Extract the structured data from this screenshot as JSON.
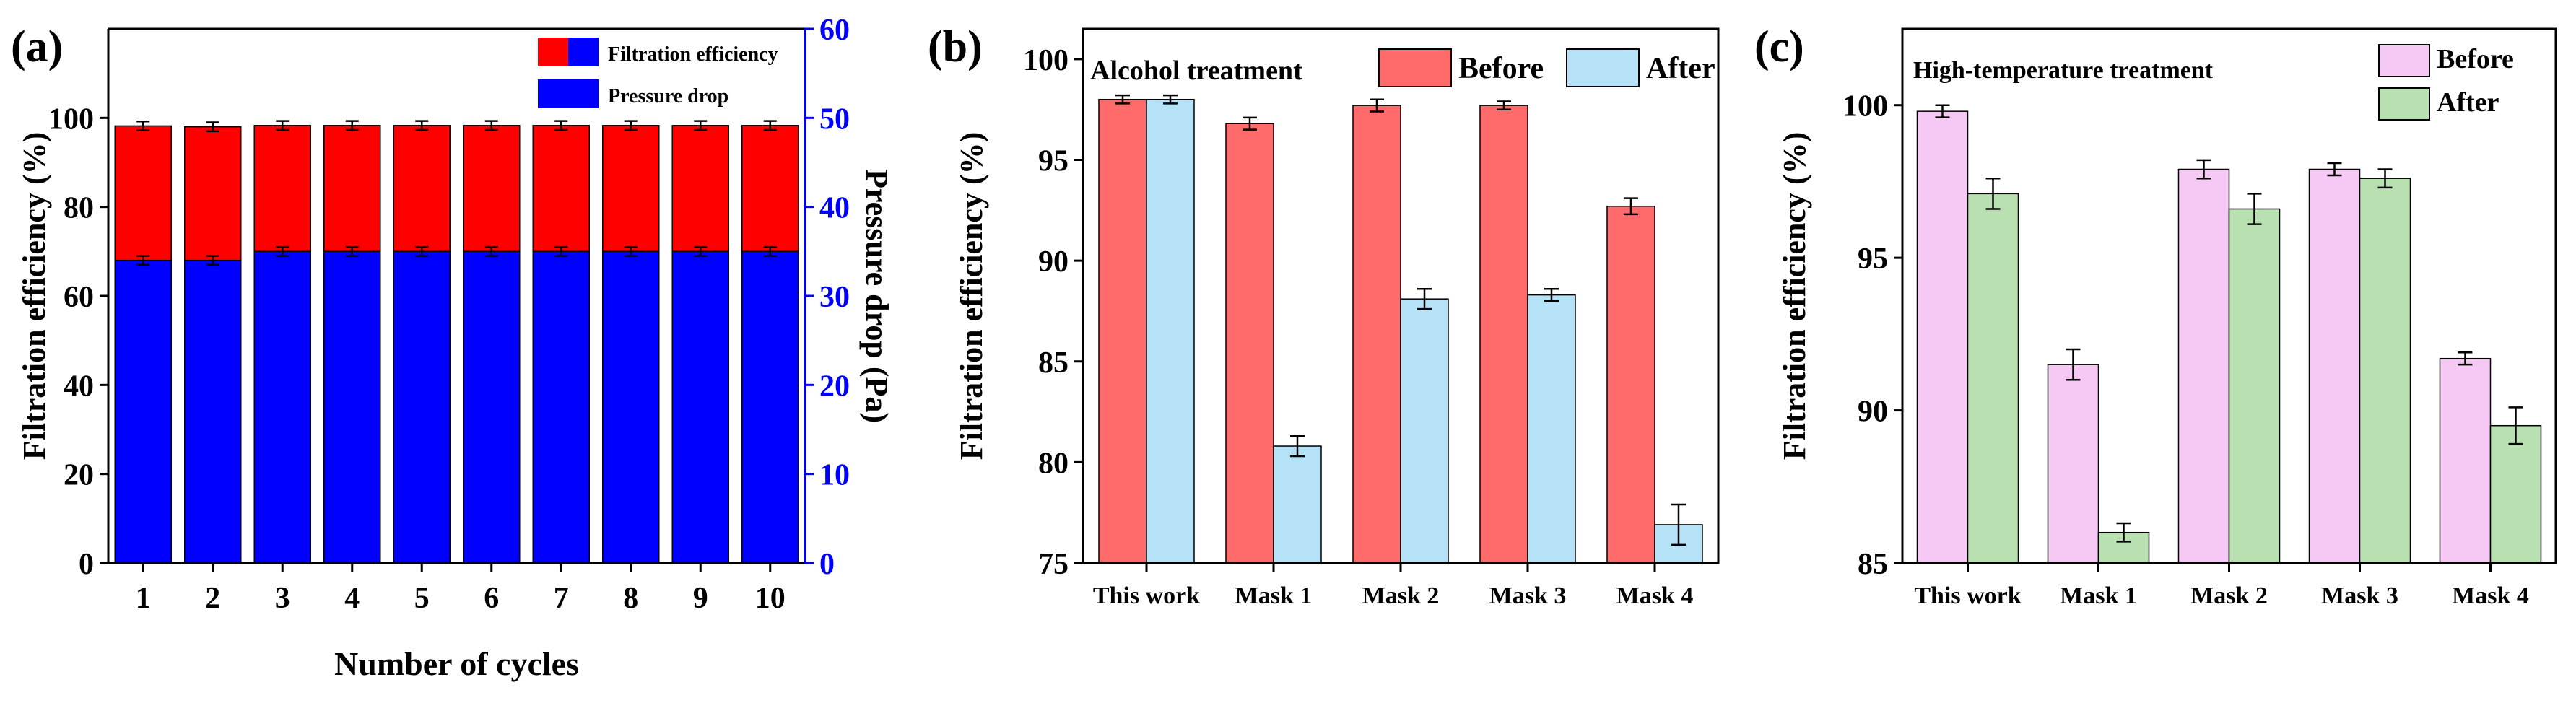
{
  "chart_data": [
    {
      "panel_label": "(a)",
      "type": "bar",
      "stacked": true,
      "xlabel": "Number of cycles",
      "ylabel": "Filtration efficiency (%)",
      "y2label": "Pressure drop (Pa)",
      "categories": [
        "1",
        "2",
        "3",
        "4",
        "5",
        "6",
        "7",
        "8",
        "9",
        "10"
      ],
      "ylim": [
        0,
        120
      ],
      "y_ticks": [
        0,
        20,
        40,
        60,
        80,
        100
      ],
      "y2lim": [
        0,
        60
      ],
      "y2_ticks": [
        0,
        10,
        20,
        30,
        40,
        50,
        60
      ],
      "series": [
        {
          "name": "Filtration efficiency",
          "axis": "left",
          "color": "#ff0000",
          "values": [
            98.2,
            98.0,
            98.3,
            98.3,
            98.3,
            98.3,
            98.3,
            98.3,
            98.3,
            98.3
          ],
          "errors": [
            1.0,
            1.0,
            1.0,
            1.0,
            1.0,
            1.0,
            1.0,
            1.0,
            1.0,
            1.0
          ]
        },
        {
          "name": "Pressure drop",
          "axis": "right",
          "color": "#0000ff",
          "values": [
            34.0,
            34.0,
            35.0,
            35.0,
            35.0,
            35.0,
            35.0,
            35.0,
            35.0,
            35.0
          ],
          "errors": [
            0.5,
            0.5,
            0.5,
            0.5,
            0.5,
            0.5,
            0.5,
            0.5,
            0.5,
            0.5
          ]
        }
      ],
      "legend": {
        "placement": "top-right",
        "entries": [
          "Filtration efficiency",
          "Pressure drop"
        ]
      },
      "grid": false
    },
    {
      "panel_label": "(b)",
      "type": "bar",
      "title": "Alcohol treatment",
      "xlabel": "",
      "ylabel": "Filtration efficiency (%)",
      "categories": [
        "This work",
        "Mask 1",
        "Mask 2",
        "Mask 3",
        "Mask 4"
      ],
      "ylim": [
        75,
        101.5
      ],
      "y_ticks": [
        75,
        80,
        85,
        90,
        95,
        100
      ],
      "series": [
        {
          "name": "Before",
          "color": "#ff6b6b",
          "values": [
            98.0,
            96.8,
            97.7,
            97.7,
            92.7
          ],
          "errors": [
            0.2,
            0.3,
            0.3,
            0.2,
            0.4
          ]
        },
        {
          "name": "After",
          "color": "#b5e2f7",
          "values": [
            98.0,
            80.8,
            88.1,
            88.3,
            76.9
          ],
          "errors": [
            0.2,
            0.5,
            0.5,
            0.3,
            1.0
          ]
        }
      ],
      "legend": {
        "placement": "top-right",
        "entries": [
          "Before",
          "After"
        ]
      },
      "grid": false
    },
    {
      "panel_label": "(c)",
      "type": "bar",
      "title": "High-temperature treatment",
      "xlabel": "",
      "ylabel": "Filtration efficiency (%)",
      "categories": [
        "This work",
        "Mask 1",
        "Mask 2",
        "Mask 3",
        "Mask 4"
      ],
      "ylim": [
        85,
        102.5
      ],
      "y_ticks": [
        85,
        90,
        95,
        100
      ],
      "series": [
        {
          "name": "Before",
          "color": "#f6c8f4",
          "values": [
            99.8,
            91.5,
            97.9,
            97.9,
            91.7
          ],
          "errors": [
            0.2,
            0.5,
            0.3,
            0.2,
            0.2
          ]
        },
        {
          "name": "After",
          "color": "#b8e0b0",
          "values": [
            97.1,
            86.0,
            96.6,
            97.6,
            89.5
          ],
          "errors": [
            0.5,
            0.3,
            0.5,
            0.3,
            0.6
          ]
        }
      ],
      "legend": {
        "placement": "top-right",
        "entries": [
          "Before",
          "After"
        ]
      },
      "grid": false
    }
  ]
}
